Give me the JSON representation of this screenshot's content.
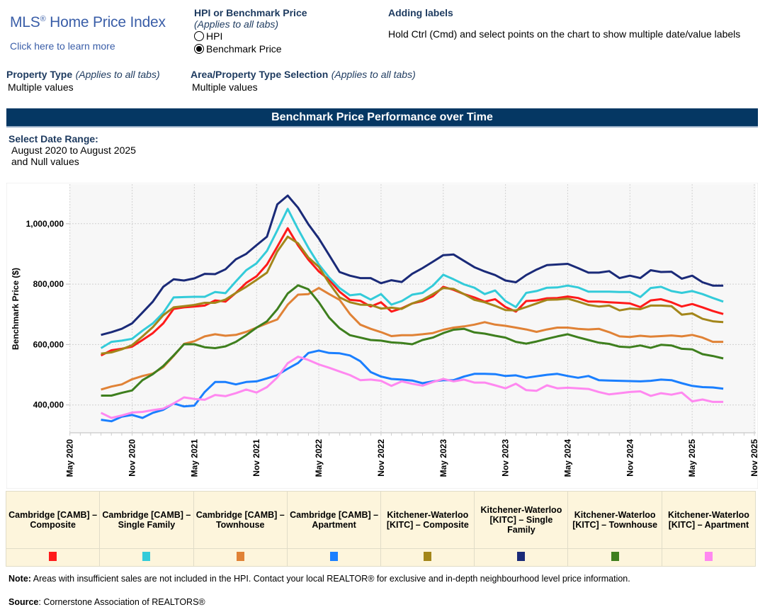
{
  "header": {
    "logo_title": "MLS",
    "logo_reg": "®",
    "logo_title_rest": " Home Price Index",
    "learn_link": "Click here to learn more",
    "hpi_toggle": {
      "title": "HPI or Benchmark Price",
      "subtitle": "(Applies to all tabs)",
      "options": [
        "HPI",
        "Benchmark Price"
      ],
      "selected": "Benchmark Price"
    },
    "adding_labels": {
      "title": "Adding labels",
      "text": "Hold Ctrl (Cmd) and select points on the chart to show multiple date/value labels"
    },
    "property_type": {
      "label": "Property Type",
      "note": "(Applies to all tabs)",
      "value": "Multiple values"
    },
    "area_selection": {
      "label": "Area/Property Type Selection",
      "note": "(Applies to all tabs)",
      "value": "Multiple values"
    }
  },
  "banner_title": "Benchmark Price Performance over Time",
  "date_range": {
    "label": "Select Date Range:",
    "value_line1": "August 2020 to August 2025",
    "value_line2": "and Null values"
  },
  "chart_data": {
    "type": "line",
    "ylabel": "Benchmark Price ($)",
    "xlabel": "",
    "ylim": [
      320000,
      1150000
    ],
    "yticks": [
      400000,
      600000,
      800000,
      1000000
    ],
    "ytick_labels": [
      "400,000",
      "600,000",
      "800,000",
      "1,000,000"
    ],
    "xlim": [
      "2020-05",
      "2025-11"
    ],
    "xticks": [
      "2020-05",
      "2020-11",
      "2021-05",
      "2021-11",
      "2022-05",
      "2022-11",
      "2023-05",
      "2023-11",
      "2024-05",
      "2024-11",
      "2025-05",
      "2025-11"
    ],
    "xtick_labels": [
      "May 2020",
      "Nov 2020",
      "May 2021",
      "Nov 2021",
      "May 2022",
      "Nov 2022",
      "May 2023",
      "Nov 2023",
      "May 2024",
      "Nov 2024",
      "May 2025",
      "Nov 2025"
    ],
    "grid": true,
    "legend_position": "bottom",
    "x": [
      "2020-08",
      "2020-09",
      "2020-10",
      "2020-11",
      "2020-12",
      "2021-01",
      "2021-02",
      "2021-03",
      "2021-04",
      "2021-05",
      "2021-06",
      "2021-07",
      "2021-08",
      "2021-09",
      "2021-10",
      "2021-11",
      "2021-12",
      "2022-01",
      "2022-02",
      "2022-03",
      "2022-04",
      "2022-05",
      "2022-06",
      "2022-07",
      "2022-08",
      "2022-09",
      "2022-10",
      "2022-11",
      "2022-12",
      "2023-01",
      "2023-02",
      "2023-03",
      "2023-04",
      "2023-05",
      "2023-06",
      "2023-07",
      "2023-08",
      "2023-09",
      "2023-10",
      "2023-11",
      "2023-12",
      "2024-01",
      "2024-02",
      "2024-03",
      "2024-04",
      "2024-05",
      "2024-06",
      "2024-07",
      "2024-08",
      "2024-09",
      "2024-10",
      "2024-11",
      "2024-12",
      "2025-01",
      "2025-02",
      "2025-03",
      "2025-04",
      "2025-05",
      "2025-06",
      "2025-07",
      "2025-08"
    ],
    "series": [
      {
        "name": "Cambridge [CAMB] – Composite",
        "color": "#ff1a1a",
        "values": [
          564000,
          581000,
          586000,
          593000,
          615000,
          638000,
          670000,
          718000,
          723000,
          726000,
          729000,
          746000,
          742000,
          771000,
          804000,
          826000,
          865000,
          924000,
          985000,
          928000,
          881000,
          842000,
          814000,
          775000,
          748000,
          745000,
          726000,
          740000,
          709000,
          720000,
          736000,
          744000,
          760000,
          791000,
          781000,
          767000,
          756000,
          742000,
          750000,
          724000,
          709000,
          744000,
          746000,
          753000,
          754000,
          759000,
          754000,
          742000,
          742000,
          740000,
          738000,
          736000,
          724000,
          746000,
          750000,
          740000,
          726000,
          734000,
          723000,
          711000,
          701000
        ]
      },
      {
        "name": "Cambridge [CAMB] – Single Family",
        "color": "#33cbd9",
        "values": [
          588000,
          609000,
          613000,
          619000,
          646000,
          670000,
          705000,
          756000,
          757000,
          758000,
          758000,
          774000,
          770000,
          809000,
          846000,
          869000,
          910000,
          978000,
          1049000,
          982000,
          920000,
          865000,
          822000,
          787000,
          763000,
          767000,
          749000,
          767000,
          732000,
          744000,
          765000,
          771000,
          795000,
          831000,
          816000,
          799000,
          788000,
          767000,
          779000,
          744000,
          724000,
          771000,
          777000,
          788000,
          789000,
          795000,
          789000,
          775000,
          775000,
          775000,
          774000,
          774000,
          757000,
          787000,
          791000,
          777000,
          771000,
          777000,
          767000,
          754000,
          742000
        ]
      },
      {
        "name": "Cambridge [CAMB] – Townhouse",
        "color": "#e08236",
        "values": [
          451000,
          461000,
          468000,
          485000,
          496000,
          504000,
          525000,
          562000,
          602000,
          611000,
          627000,
          634000,
          629000,
          632000,
          642000,
          656000,
          670000,
          683000,
          732000,
          765000,
          767000,
          787000,
          767000,
          748000,
          701000,
          666000,
          652000,
          641000,
          628000,
          631000,
          631000,
          634000,
          638000,
          649000,
          656000,
          660000,
          666000,
          674000,
          666000,
          662000,
          656000,
          650000,
          642000,
          650000,
          656000,
          656000,
          652000,
          650000,
          652000,
          641000,
          627000,
          625000,
          629000,
          626000,
          628000,
          630000,
          627000,
          632000,
          623000,
          609000,
          609000
        ]
      },
      {
        "name": "Cambridge [CAMB] – Apartment",
        "color": "#1a7fff",
        "values": [
          351000,
          346000,
          361000,
          367000,
          357000,
          374000,
          384000,
          405000,
          395000,
          398000,
          443000,
          476000,
          476000,
          468000,
          476000,
          478000,
          488000,
          499000,
          520000,
          539000,
          572000,
          580000,
          572000,
          571000,
          564000,
          545000,
          509000,
          494000,
          486000,
          484000,
          481000,
          472000,
          478000,
          482000,
          482000,
          494000,
          503000,
          503000,
          502000,
          496000,
          498000,
          490000,
          495000,
          500000,
          503000,
          496000,
          490000,
          496000,
          482000,
          481000,
          480000,
          479000,
          478000,
          480000,
          484000,
          482000,
          472000,
          463000,
          459000,
          458000,
          454000
        ]
      },
      {
        "name": "Kitchener-Waterloo [KITC] – Composite",
        "color": "#a3861a",
        "values": [
          570000,
          574000,
          584000,
          598000,
          627000,
          658000,
          697000,
          723000,
          727000,
          731000,
          738000,
          738000,
          749000,
          771000,
          791000,
          814000,
          838000,
          908000,
          957000,
          935000,
          888000,
          857000,
          803000,
          756000,
          740000,
          732000,
          731000,
          719000,
          722000,
          718000,
          736000,
          748000,
          767000,
          787000,
          784000,
          767000,
          748000,
          740000,
          728000,
          714000,
          713000,
          724000,
          736000,
          748000,
          749000,
          752000,
          742000,
          731000,
          726000,
          729000,
          713000,
          719000,
          717000,
          729000,
          729000,
          727000,
          699000,
          703000,
          685000,
          677000,
          674000
        ]
      },
      {
        "name": "Kitchener-Waterloo [KITC] – Single Family",
        "color": "#1a2a78",
        "values": [
          632000,
          641000,
          652000,
          670000,
          706000,
          742000,
          791000,
          816000,
          812000,
          819000,
          834000,
          833000,
          849000,
          882000,
          900000,
          929000,
          957000,
          1064000,
          1093000,
          1053000,
          998000,
          951000,
          896000,
          840000,
          828000,
          820000,
          820000,
          803000,
          813000,
          807000,
          834000,
          853000,
          874000,
          896000,
          898000,
          877000,
          856000,
          842000,
          830000,
          812000,
          806000,
          830000,
          848000,
          863000,
          865000,
          867000,
          853000,
          838000,
          838000,
          843000,
          820000,
          828000,
          820000,
          846000,
          840000,
          841000,
          818000,
          828000,
          806000,
          795000,
          795000
        ]
      },
      {
        "name": "Kitchener-Waterloo [KITC] – Townhouse",
        "color": "#3e7f1e",
        "values": [
          431000,
          431000,
          440000,
          448000,
          482000,
          502000,
          529000,
          564000,
          601000,
          601000,
          591000,
          588000,
          594000,
          609000,
          631000,
          656000,
          677000,
          717000,
          769000,
          796000,
          783000,
          740000,
          689000,
          654000,
          631000,
          623000,
          615000,
          613000,
          607000,
          605000,
          601000,
          615000,
          623000,
          638000,
          649000,
          652000,
          640000,
          636000,
          629000,
          623000,
          609000,
          603000,
          610000,
          619000,
          627000,
          634000,
          624000,
          615000,
          606000,
          602000,
          593000,
          591000,
          597000,
          589000,
          599000,
          597000,
          586000,
          584000,
          568000,
          562000,
          554000
        ]
      },
      {
        "name": "Kitchener-Waterloo [KITC] – Apartment",
        "color": "#ff88f0",
        "values": [
          374000,
          357000,
          365000,
          375000,
          377000,
          383000,
          388000,
          405000,
          425000,
          420000,
          417000,
          433000,
          429000,
          439000,
          451000,
          441000,
          459000,
          491000,
          538000,
          560000,
          549000,
          534000,
          523000,
          511000,
          499000,
          482000,
          484000,
          480000,
          463000,
          478000,
          470000,
          464000,
          476000,
          486000,
          478000,
          484000,
          474000,
          474000,
          465000,
          455000,
          470000,
          449000,
          447000,
          465000,
          455000,
          457000,
          455000,
          453000,
          443000,
          435000,
          439000,
          443000,
          445000,
          430000,
          439000,
          434000,
          441000,
          412000,
          418000,
          410000,
          410000
        ]
      }
    ]
  },
  "note": {
    "label": "Note:",
    "text": " Areas with insufficient sales are not included in the HPI. Contact your local REALTOR® for exclusive and in-depth neighbourhood level price information."
  },
  "source": {
    "label": "Source",
    "text": ": Cornerstone Association of REALTORS®"
  }
}
